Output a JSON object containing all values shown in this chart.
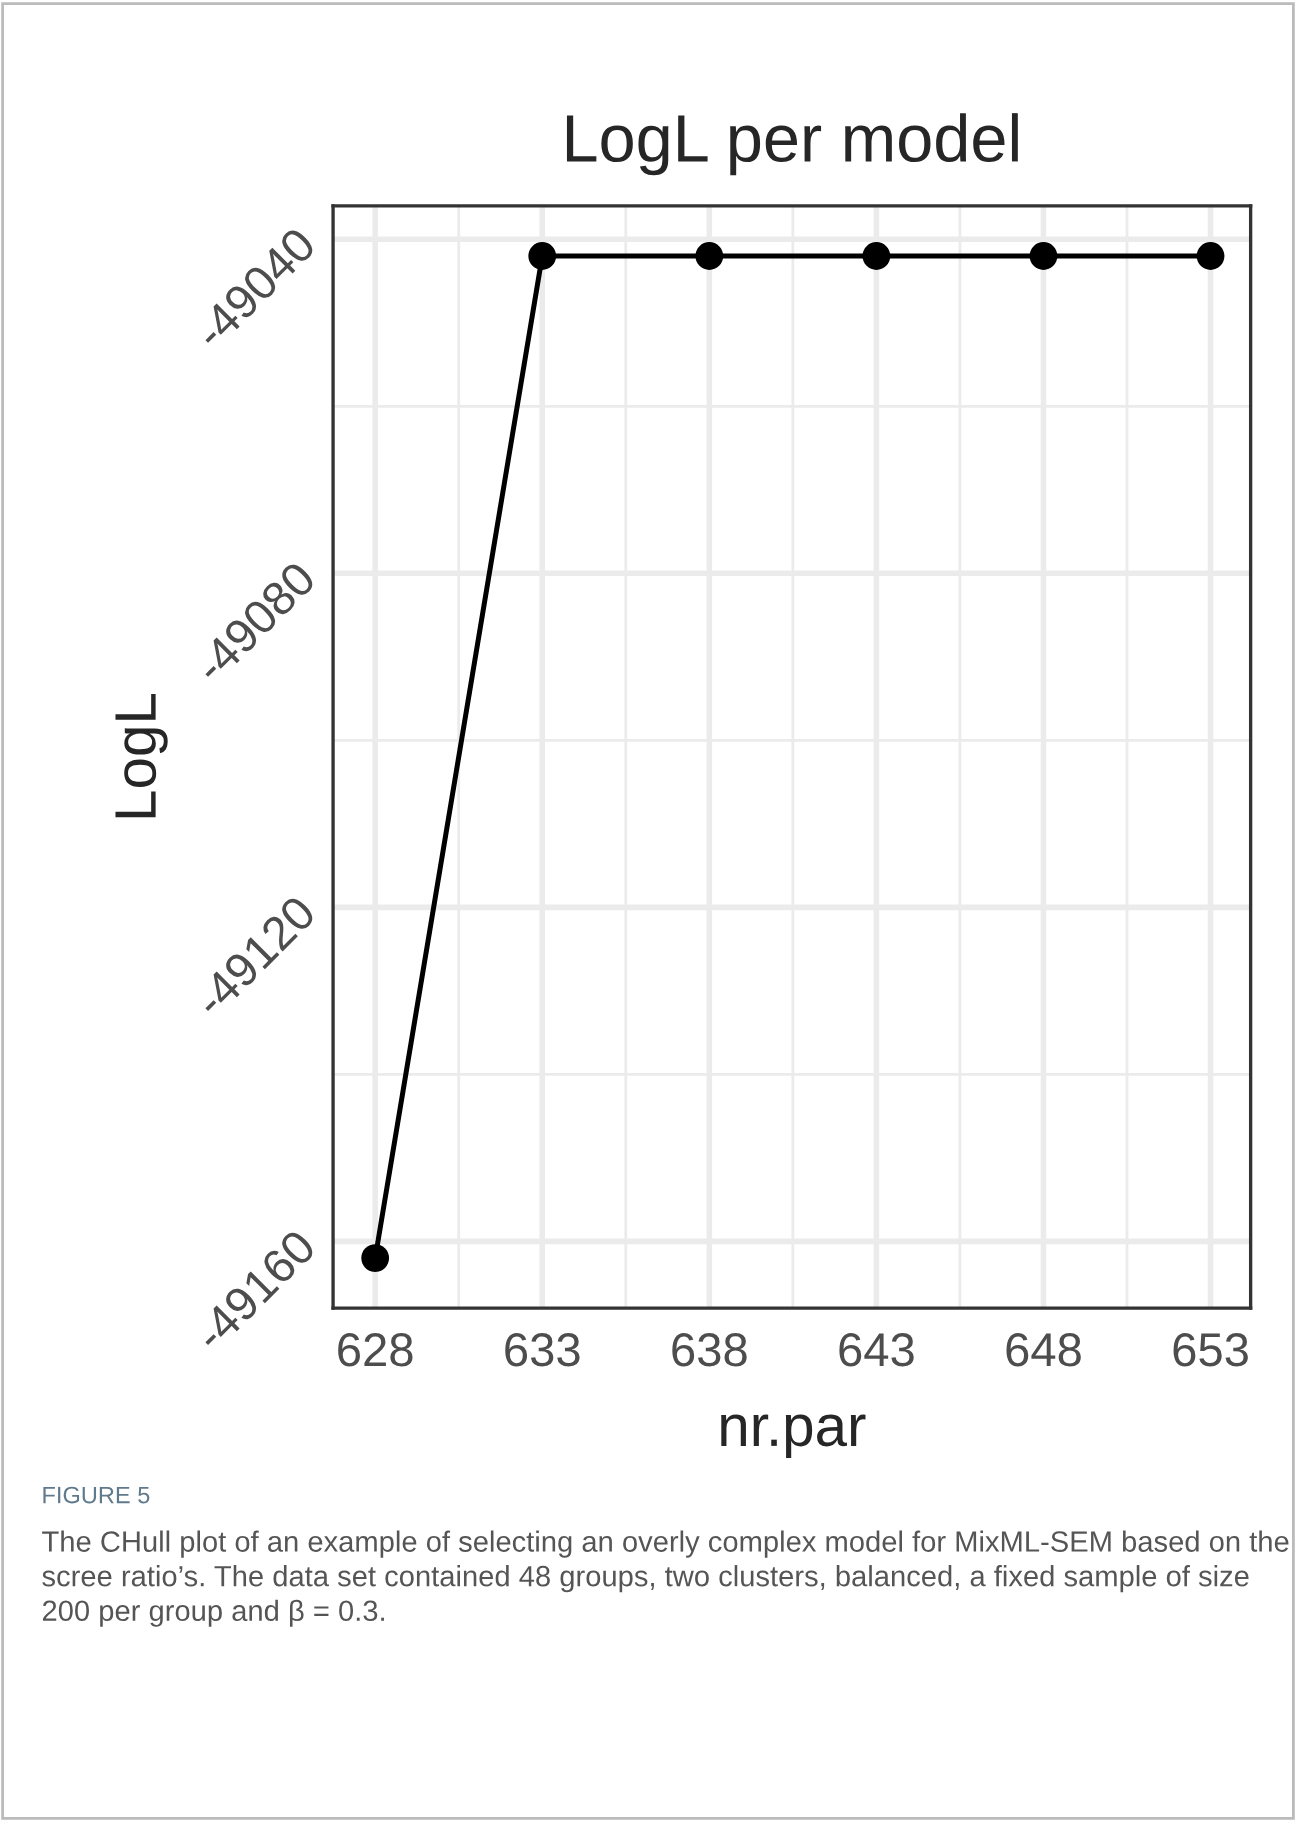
{
  "chart_data": {
    "type": "line",
    "title": "LogL per model",
    "xlabel": "nr.par",
    "ylabel": "LogL",
    "x": [
      628,
      633,
      638,
      643,
      648,
      653
    ],
    "series": [
      {
        "color": "#000000",
        "values": [
          -49162,
          -49042,
          -49042,
          -49042,
          -49042,
          -49042
        ]
      }
    ],
    "xlim": [
      626.74,
      654.2
    ],
    "ylim": [
      -49168,
      -49036
    ],
    "xticks": [
      628,
      633,
      638,
      643,
      648,
      653
    ],
    "yticks": [
      -49160,
      -49120,
      -49080,
      -49040
    ],
    "grid": true,
    "marker": "circle",
    "line_style": "solid",
    "annotations": [
      "FIGURE 5",
      "The CHull plot of an example of selecting an overly complex model for MixML-SEM based on the scree ratio’s. The data set contained 48 groups, two clusters, balanced, a fixed sample of size 200 per group and β = 0.3."
    ]
  }
}
